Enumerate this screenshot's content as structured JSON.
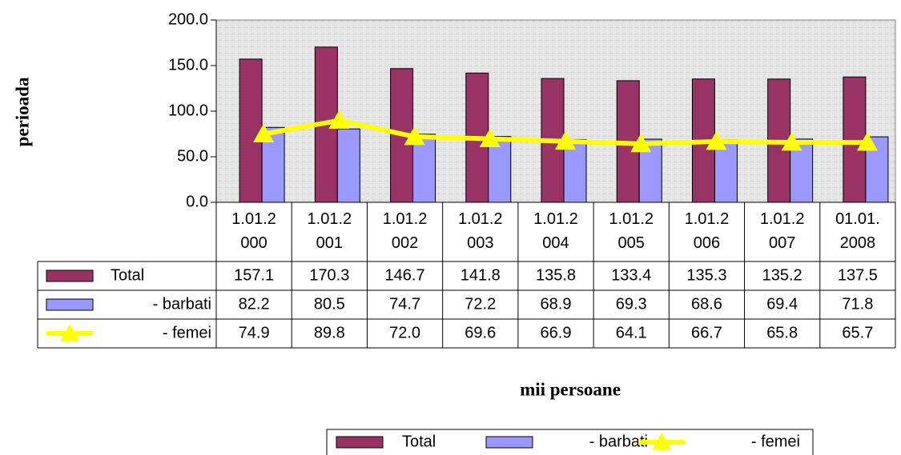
{
  "chart_data": {
    "type": "bar",
    "y_label": "perioada",
    "x_label": "mii persoane",
    "categories": [
      "1.01.2000",
      "1.01.2001",
      "1.01.2002",
      "1.01.2003",
      "1.01.2004",
      "1.01.2005",
      "1.01.2006",
      "1.01.2007",
      "01.01.2008"
    ],
    "series": [
      {
        "name": "Total",
        "type": "bar",
        "color": "#993366",
        "values": [
          157.1,
          170.3,
          146.7,
          141.8,
          135.8,
          133.4,
          135.3,
          135.2,
          137.5
        ],
        "value_labels": [
          "157.1",
          "170.3",
          "146.7",
          "141.8",
          "135.8",
          "133.4",
          "135.3",
          "135.2",
          "137.5"
        ]
      },
      {
        "name": "- barbati",
        "type": "bar",
        "color": "#9999ff",
        "values": [
          82.2,
          80.5,
          74.7,
          72.2,
          68.9,
          69.3,
          68.6,
          69.4,
          71.8
        ],
        "value_labels": [
          "82.2",
          "80.5",
          "74.7",
          "72.2",
          "68.9",
          "69.3",
          "68.6",
          "69.4",
          "71.8"
        ]
      },
      {
        "name": "- femei",
        "type": "line",
        "color": "#ffff00",
        "values": [
          74.9,
          89.8,
          72,
          69.6,
          66.9,
          64.1,
          66.7,
          65.8,
          65.7
        ],
        "value_labels": [
          "74.9",
          "89.8",
          "72.0",
          "69.6",
          "66.9",
          "64.1",
          "66.7",
          "65.8",
          "65.7"
        ]
      }
    ],
    "ylim": [
      0,
      200
    ],
    "yticks": [
      {
        "value": 0,
        "label": "0.0"
      },
      {
        "value": 50,
        "label": "50.0"
      },
      {
        "value": 100,
        "label": "100.0"
      },
      {
        "value": 150,
        "label": "150.0"
      },
      {
        "value": 200,
        "label": "200.0"
      }
    ],
    "legend": "bottom"
  }
}
